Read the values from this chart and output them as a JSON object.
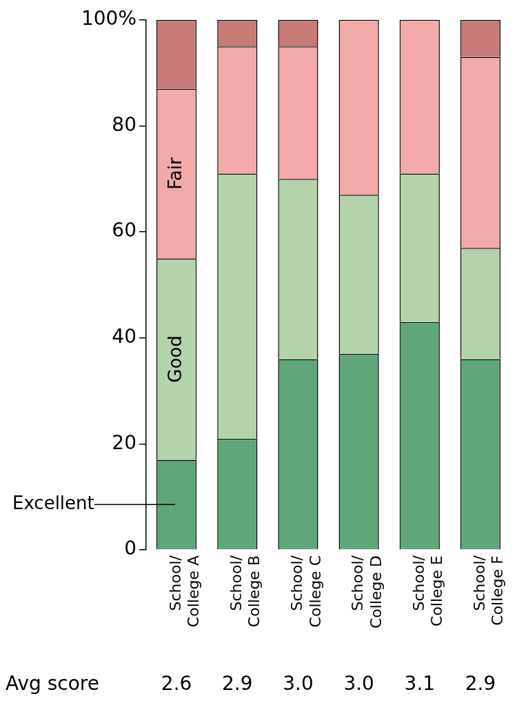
{
  "chart_data": {
    "type": "bar",
    "stacked": true,
    "categories": [
      "School/\nCollege A",
      "School/\nCollege B",
      "School/\nCollege C",
      "School/\nCollege D",
      "School/\nCollege E",
      "School/\nCollege F"
    ],
    "series": [
      {
        "name": "Excellent",
        "color": "#5fa77a",
        "values": [
          17,
          21,
          36,
          37,
          43,
          36
        ]
      },
      {
        "name": "Good",
        "color": "#b3d4aa",
        "values": [
          38,
          50,
          34,
          30,
          28,
          21
        ]
      },
      {
        "name": "Fair",
        "color": "#f2aaa8",
        "values": [
          32,
          24,
          25,
          33,
          29,
          36
        ]
      },
      {
        "color": "#c77a76",
        "values": [
          13,
          5,
          5,
          0,
          0,
          7
        ]
      }
    ],
    "ylim": [
      0,
      100
    ],
    "yticks": [
      0,
      20,
      40,
      60,
      80,
      {
        "value": 100,
        "label": "100%"
      }
    ],
    "grid": false,
    "legend": false,
    "annotations": [
      "Avg score",
      "2.6",
      "2.9",
      "3.0",
      "3.0",
      "3.1",
      "2.9"
    ]
  }
}
